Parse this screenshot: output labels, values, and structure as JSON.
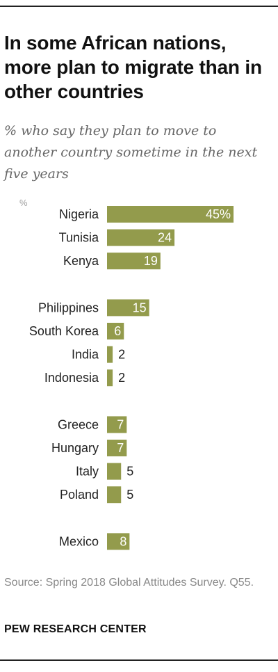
{
  "title": "In some African nations, more plan to migrate than in other countries",
  "subtitle": "% who say they plan to move to another country sometime in the next five years",
  "unit_label": "%",
  "source": "Source: Spring 2018 Global Attitudes Survey. Q55.",
  "brand": "PEW RESEARCH CENTER",
  "colors": {
    "bar": "#939b4c",
    "value_inside": "#ffffff",
    "value_outside": "#222222"
  },
  "chart_data": {
    "type": "bar",
    "orientation": "horizontal",
    "title": "In some African nations, more plan to migrate than in other countries",
    "xlabel": "",
    "ylabel": "",
    "groups": [
      [
        "Nigeria",
        "Tunisia",
        "Kenya"
      ],
      [
        "Philippines",
        "South Korea",
        "India",
        "Indonesia"
      ],
      [
        "Greece",
        "Hungary",
        "Italy",
        "Poland"
      ],
      [
        "Mexico"
      ]
    ],
    "categories": [
      "Nigeria",
      "Tunisia",
      "Kenya",
      "Philippines",
      "South Korea",
      "India",
      "Indonesia",
      "Greece",
      "Hungary",
      "Italy",
      "Poland",
      "Mexico"
    ],
    "values": [
      45,
      24,
      19,
      15,
      6,
      2,
      2,
      7,
      7,
      5,
      5,
      8
    ],
    "value_labels": [
      "45%",
      "24",
      "19",
      "15",
      "6",
      "2",
      "2",
      "7",
      "7",
      "5",
      "5",
      "8"
    ],
    "xlim": [
      0,
      45
    ],
    "grid": false,
    "legend": "none"
  }
}
